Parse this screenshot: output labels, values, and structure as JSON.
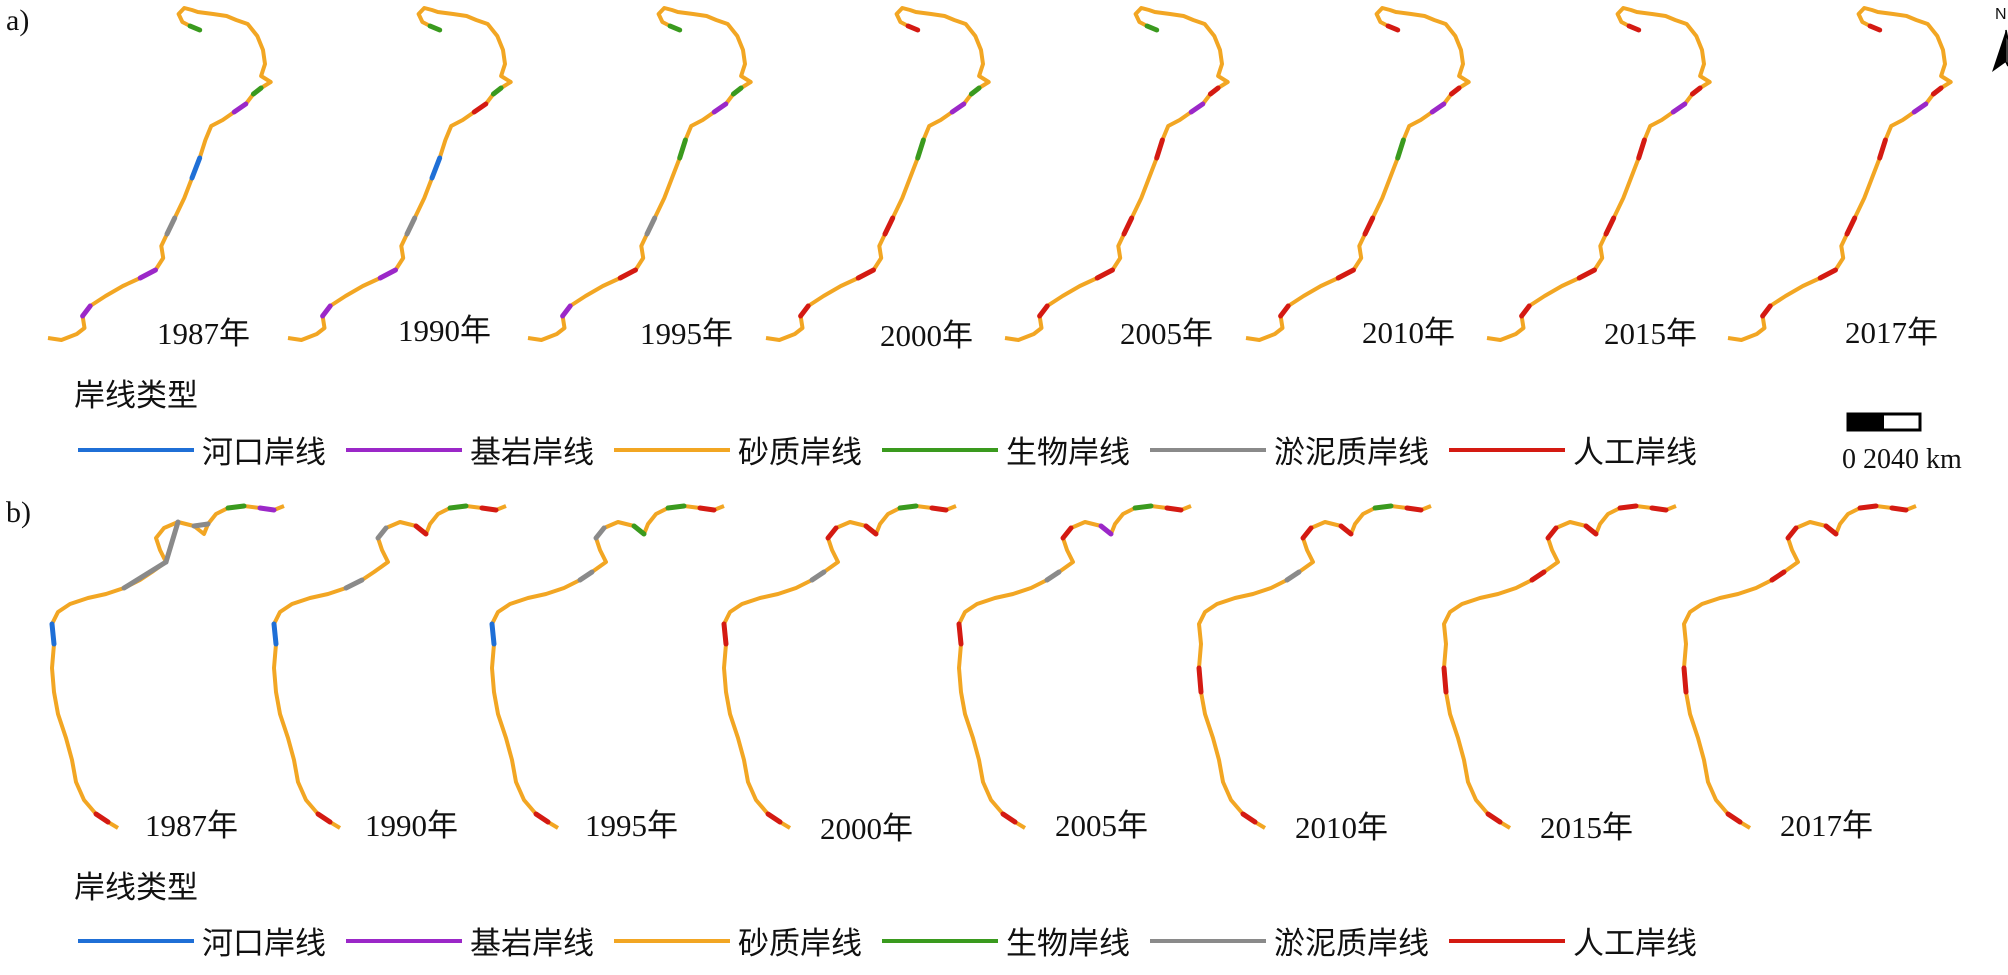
{
  "panels": [
    {
      "label": "a)",
      "years": [
        "1987年",
        "1990年",
        "1995年",
        "2000年",
        "2005年",
        "2010年",
        "2015年",
        "2017年"
      ],
      "legend_title": "岸线类型"
    },
    {
      "label": "b)",
      "years": [
        "1987年",
        "1990年",
        "1995年",
        "2000年",
        "2005年",
        "2010年",
        "2015年",
        "2017年"
      ],
      "legend_title": "岸线类型"
    }
  ],
  "legend_items": [
    {
      "label": "河口岸线",
      "color": "#1f6fd6"
    },
    {
      "label": "基岩岸线",
      "color": "#9b28c8"
    },
    {
      "label": "砂质岸线",
      "color": "#f2a623"
    },
    {
      "label": "生物岸线",
      "color": "#3a9a1e"
    },
    {
      "label": "淤泥质岸线",
      "color": "#8a8a8a"
    },
    {
      "label": "人工岸线",
      "color": "#d41a12"
    }
  ],
  "scale_bar": {
    "text": "0 2040 km"
  },
  "north_arrow": {
    "label": "N",
    "icon": "north-arrow-icon"
  }
}
